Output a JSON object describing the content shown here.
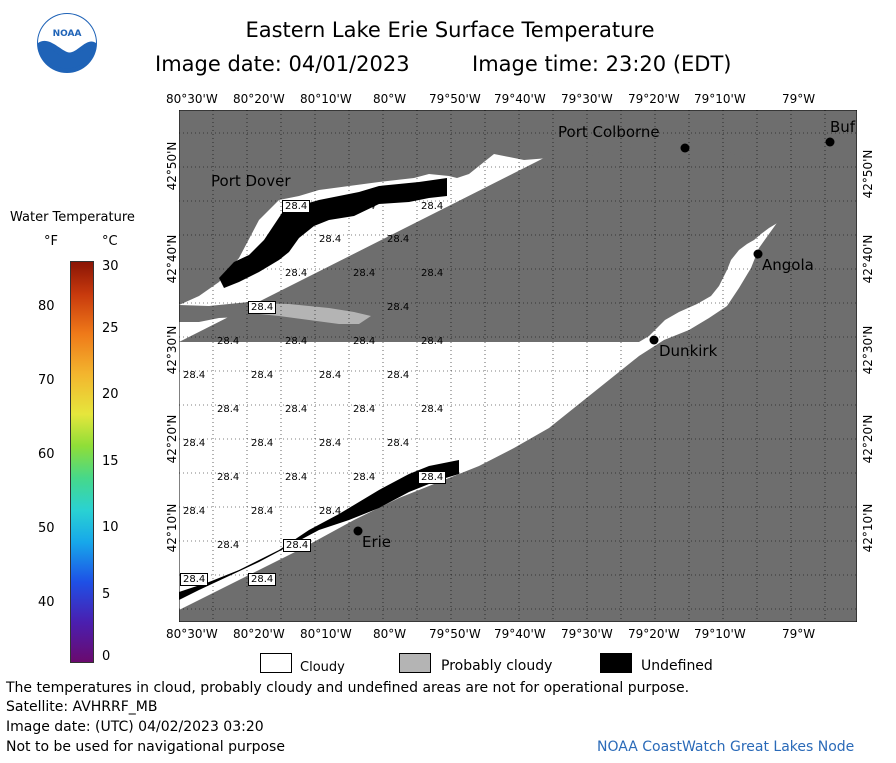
{
  "header": {
    "title": "Eastern Lake Erie Surface Temperature",
    "image_date_label": "Image date: 04/01/2023",
    "image_time_label": "Image time: 23:20 (EDT)"
  },
  "logo": {
    "text": "NOAA"
  },
  "colorbar": {
    "title": "Water Temperature",
    "unit_f": "°F",
    "unit_c": "°C",
    "f_ticks": [
      "80",
      "70",
      "60",
      "50",
      "40"
    ],
    "c_ticks": [
      "30",
      "25",
      "20",
      "15",
      "10",
      "5",
      "0"
    ]
  },
  "map": {
    "lon_labels": [
      "80°30'W",
      "80°20'W",
      "80°10'W",
      "80°W",
      "79°50'W",
      "79°40'W",
      "79°30'W",
      "79°20'W",
      "79°10'W",
      "79°W"
    ],
    "lat_labels": [
      "42°50'N",
      "42°40'N",
      "42°30'N",
      "42°20'N",
      "42°10'N"
    ],
    "cities": [
      "Port Colborne",
      "Port Dover",
      "Angola",
      "Dunkirk",
      "Erie",
      "Buf"
    ],
    "temp_value": "28.4",
    "colors": {
      "land": "#6e6e6e",
      "cloud": "#ffffff",
      "undefined": "#000000",
      "probably_cloudy": "#b4b4b4"
    }
  },
  "legend": {
    "cloudy": "Cloudy",
    "probably_cloudy": "Probably cloudy",
    "undefined": "Undefined"
  },
  "footer": {
    "disclaimer": "The temperatures in cloud, probably cloudy and undefined areas are not for operational purpose.",
    "satellite": "Satellite: AVHRRF_MB",
    "utc_date": "Image date: (UTC) 04/02/2023  03:20",
    "nav_warning": "Not to be used for navigational purpose",
    "credit": "NOAA CoastWatch Great Lakes Node"
  }
}
